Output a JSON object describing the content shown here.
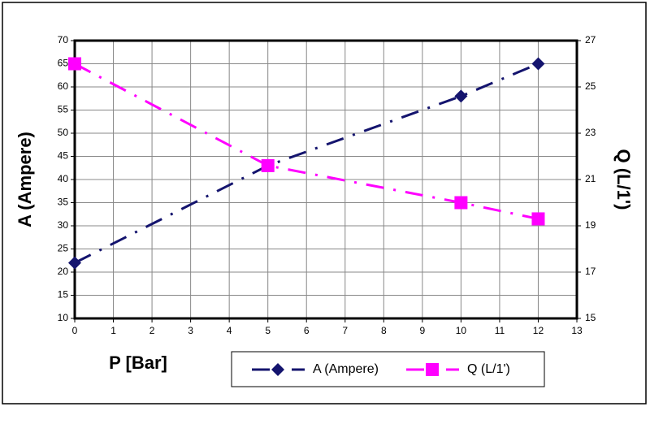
{
  "chart_data": {
    "type": "line",
    "x_label": "P [Bar]",
    "y_label": "A (Ampere)",
    "y2_label": "Q (L/1')",
    "x": [
      0,
      5,
      10,
      12
    ],
    "series": [
      {
        "name": "A (Ampere)",
        "color": "#14146e",
        "marker": "diamond",
        "values": [
          22,
          43,
          58,
          65
        ]
      },
      {
        "name": "Q (L/1')",
        "color": "#ff00ff",
        "marker": "square",
        "axis": "y2",
        "values": [
          26,
          21.6,
          20,
          19.3
        ]
      }
    ],
    "xlim": [
      0,
      13
    ],
    "xticks": [
      0,
      1,
      2,
      3,
      4,
      5,
      6,
      7,
      8,
      9,
      10,
      11,
      12,
      13
    ],
    "ylim": [
      10,
      70
    ],
    "yticks": [
      10,
      15,
      20,
      25,
      30,
      35,
      40,
      45,
      50,
      55,
      60,
      65,
      70
    ],
    "y2lim": [
      15,
      27
    ],
    "y2ticks": [
      15,
      17,
      19,
      21,
      23,
      25,
      27
    ],
    "grid": true
  }
}
